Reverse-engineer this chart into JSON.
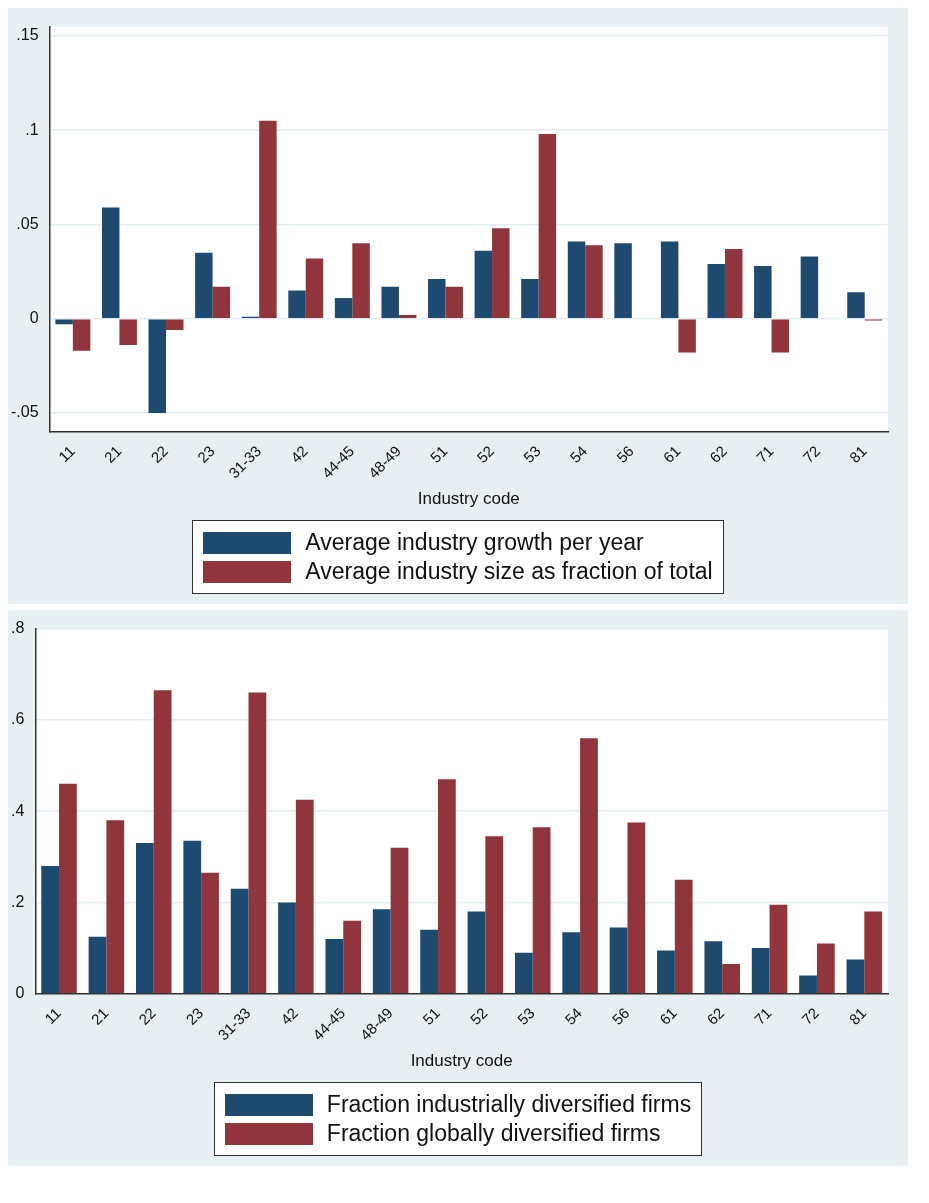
{
  "chart_data": [
    {
      "type": "bar",
      "xlabel": "Industry code",
      "categories": [
        "11",
        "21",
        "22",
        "23",
        "31-33",
        "42",
        "44-45",
        "48-49",
        "51",
        "52",
        "53",
        "54",
        "56",
        "61",
        "62",
        "71",
        "72",
        "81"
      ],
      "series": [
        {
          "name": "Average industry growth per year",
          "color": "#1f4a70",
          "values": [
            -0.003,
            0.059,
            -0.05,
            0.035,
            0.001,
            0.015,
            0.011,
            0.017,
            0.021,
            0.036,
            0.021,
            0.041,
            0.04,
            0.041,
            0.029,
            0.028,
            0.033,
            0.014
          ]
        },
        {
          "name": "Average industry size as fraction of total",
          "color": "#90353b",
          "values": [
            -0.017,
            -0.014,
            -0.006,
            0.017,
            0.105,
            0.032,
            0.04,
            0.002,
            0.017,
            0.048,
            0.098,
            0.039,
            0,
            -0.018,
            0.037,
            -0.018,
            0,
            -0.001
          ]
        }
      ],
      "ylim": [
        -0.06,
        0.155
      ],
      "yticks": [
        {
          "value": -0.05,
          "label": "-.05"
        },
        0,
        {
          "value": 0.05,
          "label": ".05"
        },
        {
          "value": 0.1,
          "label": ".1"
        },
        {
          "value": 0.15,
          "label": ".15"
        }
      ],
      "grid": "y",
      "legend": "bottom"
    },
    {
      "type": "bar",
      "xlabel": "Industry code",
      "categories": [
        "11",
        "21",
        "22",
        "23",
        "31-33",
        "42",
        "44-45",
        "48-49",
        "51",
        "52",
        "53",
        "54",
        "56",
        "61",
        "62",
        "71",
        "72",
        "81"
      ],
      "series": [
        {
          "name": "Fraction industrially diversified firms",
          "color": "#1f4a70",
          "values": [
            0.28,
            0.125,
            0.33,
            0.335,
            0.23,
            0.2,
            0.12,
            0.185,
            0.14,
            0.18,
            0.09,
            0.135,
            0.145,
            0.095,
            0.115,
            0.1,
            0.04,
            0.075
          ]
        },
        {
          "name": "Fraction globally diversified firms",
          "color": "#90353b",
          "values": [
            0.46,
            0.38,
            0.665,
            0.265,
            0.66,
            0.425,
            0.16,
            0.32,
            0.47,
            0.345,
            0.365,
            0.56,
            0.375,
            0.25,
            0.065,
            0.195,
            0.11,
            0.18
          ]
        }
      ],
      "ylim": [
        0,
        0.8
      ],
      "yticks": [
        0,
        {
          "value": 0.2,
          "label": ".2"
        },
        {
          "value": 0.4,
          "label": ".4"
        },
        {
          "value": 0.6,
          "label": ".6"
        },
        {
          "value": 0.8,
          "label": ".8"
        }
      ],
      "grid": "y",
      "legend": "bottom"
    }
  ]
}
